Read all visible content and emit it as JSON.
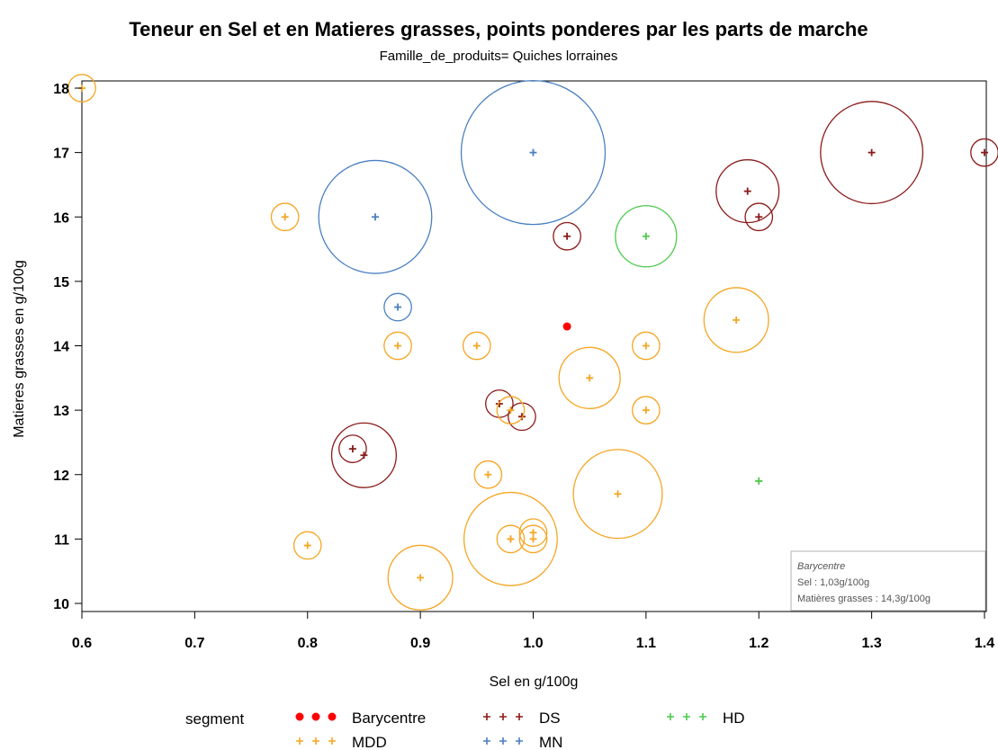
{
  "chart_data": {
    "type": "scatter",
    "title": "Teneur en Sel et en Matieres grasses, points ponderes par les parts de marche",
    "subtitle": "Famille_de_produits= Quiches  lorraines",
    "xlabel": "Sel en g/100g",
    "ylabel": "Matieres grasses en g/100g",
    "xlim": [
      0.6,
      1.4
    ],
    "ylim": [
      10,
      18
    ],
    "xticks": [
      "0.6",
      "0.7",
      "0.8",
      "0.9",
      "1.0",
      "1.1",
      "1.2",
      "1.3",
      "1.4"
    ],
    "yticks": [
      "10",
      "11",
      "12",
      "13",
      "14",
      "15",
      "16",
      "17",
      "18"
    ],
    "grid": false,
    "legend": {
      "title": "segment",
      "placement": "bottom",
      "entries": [
        {
          "name": "Barycentre",
          "color": "#ff0000",
          "marker": "dot"
        },
        {
          "name": "DS",
          "color": "#8b1a1a",
          "marker": "plus"
        },
        {
          "name": "HD",
          "color": "#4dc94d",
          "marker": "plus"
        },
        {
          "name": "MDD",
          "color": "#f5a623",
          "marker": "plus"
        },
        {
          "name": "MN",
          "color": "#4a7fc1",
          "marker": "plus"
        }
      ]
    },
    "annotation": {
      "title": "Barycentre",
      "lines": [
        "Sel : 1,03g/100g",
        "Matières grasses : 14,3g/100g"
      ]
    },
    "series": [
      {
        "name": "Barycentre",
        "color": "#ff0000",
        "points": [
          {
            "x": 1.03,
            "y": 14.3,
            "w": 0
          }
        ]
      },
      {
        "name": "DS",
        "color": "#8b1a1a",
        "points": [
          {
            "x": 1.3,
            "y": 17.0,
            "w": 46
          },
          {
            "x": 1.19,
            "y": 16.4,
            "w": 14
          },
          {
            "x": 1.4,
            "y": 17.0,
            "w": 1
          },
          {
            "x": 1.2,
            "y": 16.0,
            "w": 1
          },
          {
            "x": 1.03,
            "y": 15.7,
            "w": 1
          },
          {
            "x": 0.97,
            "y": 13.1,
            "w": 1
          },
          {
            "x": 0.99,
            "y": 12.9,
            "w": 1
          },
          {
            "x": 0.84,
            "y": 12.4,
            "w": 1
          },
          {
            "x": 0.85,
            "y": 12.3,
            "w": 15
          }
        ]
      },
      {
        "name": "HD",
        "color": "#4dc94d",
        "points": [
          {
            "x": 1.1,
            "y": 15.7,
            "w": 13
          },
          {
            "x": 1.2,
            "y": 11.9,
            "w": 0
          }
        ]
      },
      {
        "name": "MDD",
        "color": "#f5a623",
        "points": [
          {
            "x": 0.6,
            "y": 18.0,
            "w": 1
          },
          {
            "x": 0.78,
            "y": 16.0,
            "w": 1
          },
          {
            "x": 0.88,
            "y": 14.0,
            "w": 1
          },
          {
            "x": 0.95,
            "y": 14.0,
            "w": 1
          },
          {
            "x": 1.1,
            "y": 14.0,
            "w": 1
          },
          {
            "x": 1.18,
            "y": 14.4,
            "w": 15
          },
          {
            "x": 1.05,
            "y": 13.5,
            "w": 13
          },
          {
            "x": 0.98,
            "y": 13.0,
            "w": 1
          },
          {
            "x": 1.1,
            "y": 13.0,
            "w": 1
          },
          {
            "x": 0.96,
            "y": 12.0,
            "w": 1
          },
          {
            "x": 1.075,
            "y": 11.7,
            "w": 33
          },
          {
            "x": 0.98,
            "y": 11.0,
            "w": 37
          },
          {
            "x": 0.98,
            "y": 11.0,
            "w": 1
          },
          {
            "x": 1.0,
            "y": 11.1,
            "w": 1
          },
          {
            "x": 1.0,
            "y": 11.0,
            "w": 1
          },
          {
            "x": 0.8,
            "y": 10.9,
            "w": 1
          },
          {
            "x": 0.9,
            "y": 10.4,
            "w": 15
          }
        ]
      },
      {
        "name": "MN",
        "color": "#4a7fc1",
        "points": [
          {
            "x": 1.0,
            "y": 17.0,
            "w": 100
          },
          {
            "x": 0.86,
            "y": 16.0,
            "w": 58
          },
          {
            "x": 0.88,
            "y": 14.6,
            "w": 1
          }
        ]
      }
    ]
  }
}
